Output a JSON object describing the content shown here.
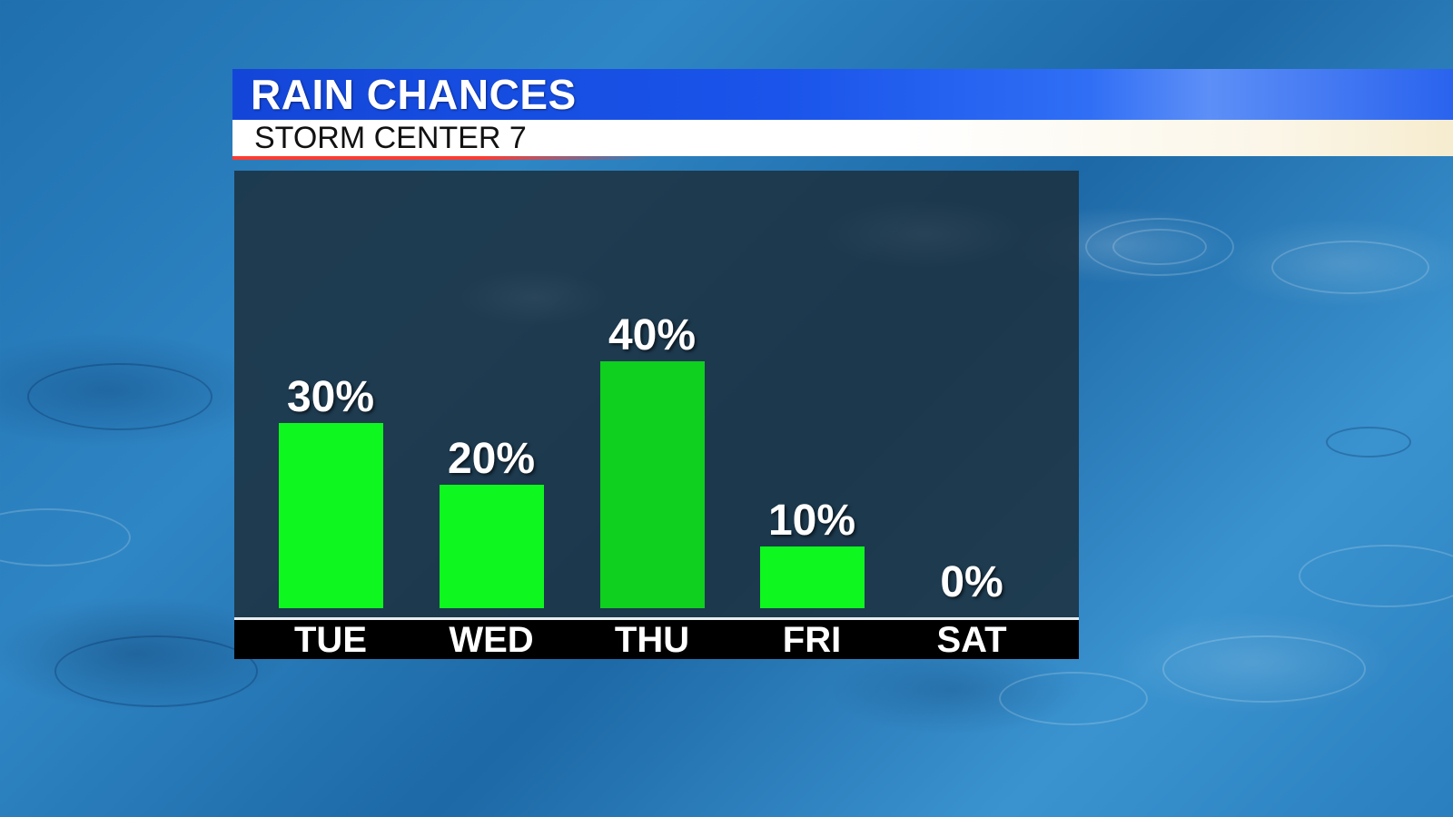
{
  "header": {
    "title": "RAIN CHANCES",
    "subtitle": "STORM CENTER 7",
    "title_bar_color": "#1a54ea",
    "accent_color": "#ff3b30"
  },
  "chart_data": {
    "type": "bar",
    "categories": [
      "TUE",
      "WED",
      "THU",
      "FRI",
      "SAT"
    ],
    "values": [
      30,
      20,
      40,
      10,
      0
    ],
    "value_labels": [
      "30%",
      "20%",
      "40%",
      "10%",
      "0%"
    ],
    "ylim": [
      0,
      100
    ],
    "bar_color": "#0ef71f",
    "grid": false
  }
}
